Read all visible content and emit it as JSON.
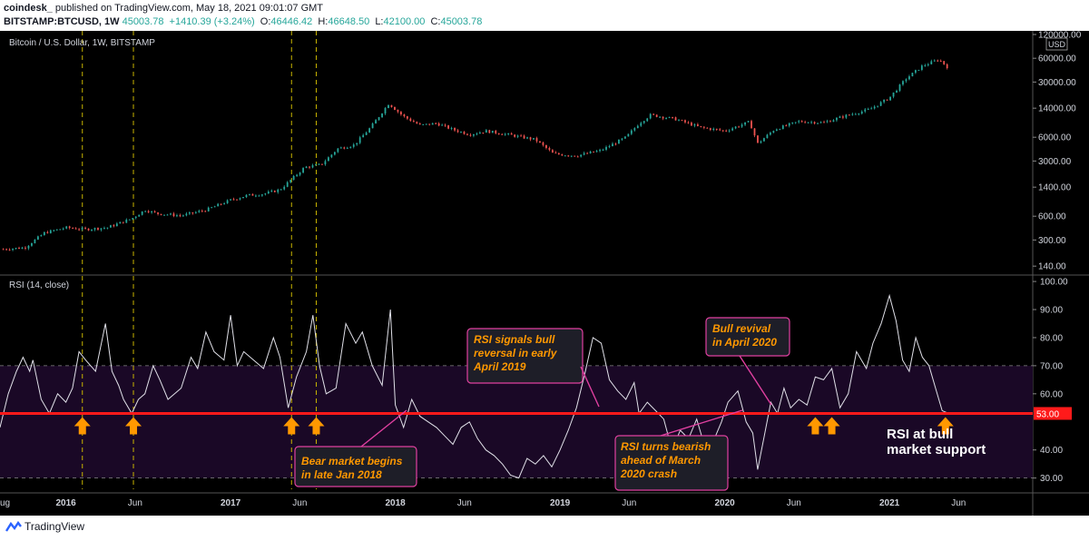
{
  "header": {
    "publisher": "coindesk_",
    "published_text": "published on TradingView.com, May 18, 2021 09:01:07 GMT",
    "symbol": "BITSTAMP:BTCUSD, 1W",
    "last": "45003.78",
    "change": "+1410.39 (+3.24%)",
    "o_label": "O:",
    "o_value": "46446.42",
    "h_label": "H:",
    "h_value": "46648.50",
    "l_label": "L:",
    "l_value": "42100.00",
    "c_label": "C:",
    "c_value": "45003.78"
  },
  "footer": {
    "brand": "TradingView"
  },
  "colors": {
    "background": "#000000",
    "rsi_band": "#1a0826",
    "rsi_line": "#e0e0e8",
    "support_line": "#ff1a1a",
    "arrow": "#ff9800",
    "annotation_text": "#ff9800",
    "annotation_border": "#e040a0",
    "up_candle": "#26a69a",
    "down_candle": "#ef5350",
    "vline": "#c8b400"
  },
  "chart_data": [
    {
      "type": "line",
      "pane": "price",
      "title": "Bitcoin / U.S. Dollar, 1W, BITSTAMP",
      "scale": "log",
      "currency_label": "USD",
      "y_ticks": [
        140,
        300,
        600,
        1400,
        3000,
        6000,
        14000,
        30000,
        60000,
        120000
      ],
      "y_tick_labels": [
        "140.00",
        "300.00",
        "600.00",
        "1400.00",
        "3000.00",
        "6000.00",
        "14000.00",
        "30000.00",
        "60000.00",
        "120000.00"
      ],
      "x_tick_labels": [
        "ug",
        "2016",
        "Jun",
        "2017",
        "Jun",
        "2018",
        "Jun",
        "2019",
        "Jun",
        "2020",
        "Jun",
        "2021",
        "Jun"
      ],
      "x_tick_dates": [
        2015.62,
        2016.0,
        2016.42,
        2017.0,
        2017.42,
        2018.0,
        2018.42,
        2019.0,
        2019.42,
        2020.0,
        2020.42,
        2021.0,
        2021.42
      ],
      "xlim": [
        2015.6,
        2021.87
      ],
      "ylim": [
        120,
        120000
      ],
      "series": [
        {
          "x": [
            2015.62,
            2015.75,
            2015.87,
            2016.0,
            2016.12,
            2016.25,
            2016.4,
            2016.48,
            2016.55,
            2016.7,
            2016.85,
            2017.0,
            2017.1,
            2017.2,
            2017.3,
            2017.45,
            2017.55,
            2017.65,
            2017.75,
            2017.85,
            2017.96,
            2018.05,
            2018.15,
            2018.25,
            2018.35,
            2018.45,
            2018.55,
            2018.7,
            2018.85,
            2018.96,
            2019.1,
            2019.25,
            2019.4,
            2019.48,
            2019.55,
            2019.7,
            2019.85,
            2020.0,
            2020.15,
            2020.2,
            2020.3,
            2020.45,
            2020.6,
            2020.75,
            2020.88,
            2021.0,
            2021.1,
            2021.2,
            2021.3,
            2021.36
          ],
          "y": [
            230,
            240,
            370,
            430,
            410,
            430,
            560,
            720,
            650,
            610,
            720,
            960,
            1100,
            1150,
            1300,
            2500,
            2700,
            4300,
            4800,
            8000,
            16000,
            11000,
            8500,
            9000,
            7500,
            6500,
            7200,
            6400,
            5600,
            3700,
            3500,
            4100,
            6000,
            9000,
            11500,
            10200,
            8000,
            7200,
            9400,
            5000,
            7500,
            9500,
            9200,
            11500,
            13500,
            19000,
            33000,
            48000,
            58000,
            45000
          ]
        }
      ],
      "marked_dates": [
        2016.1,
        2016.41,
        2017.37,
        2017.52
      ]
    },
    {
      "type": "line",
      "pane": "rsi",
      "title": "RSI (14, close)",
      "y_ticks": [
        30,
        40,
        50,
        60,
        70,
        80,
        90,
        100
      ],
      "y_tick_labels": [
        "30.00",
        "40.00",
        "50.00",
        "60.00",
        "70.00",
        "80.00",
        "90.00",
        "100.00"
      ],
      "ylim": [
        26,
        101
      ],
      "band": [
        30,
        70
      ],
      "support_level": 53,
      "support_label": "53.00",
      "series": [
        {
          "x": [
            2015.6,
            2015.65,
            2015.7,
            2015.74,
            2015.78,
            2015.8,
            2015.85,
            2015.9,
            2015.95,
            2016.0,
            2016.04,
            2016.08,
            2016.12,
            2016.18,
            2016.24,
            2016.28,
            2016.32,
            2016.35,
            2016.4,
            2016.44,
            2016.48,
            2016.53,
            2016.57,
            2016.62,
            2016.7,
            2016.76,
            2016.8,
            2016.85,
            2016.9,
            2016.96,
            2017.0,
            2017.04,
            2017.08,
            2017.14,
            2017.2,
            2017.26,
            2017.3,
            2017.35,
            2017.4,
            2017.46,
            2017.5,
            2017.54,
            2017.58,
            2017.64,
            2017.7,
            2017.76,
            2017.8,
            2017.86,
            2017.92,
            2017.97,
            2018.0,
            2018.05,
            2018.1,
            2018.15,
            2018.2,
            2018.25,
            2018.3,
            2018.35,
            2018.4,
            2018.45,
            2018.5,
            2018.55,
            2018.6,
            2018.65,
            2018.7,
            2018.75,
            2018.8,
            2018.85,
            2018.9,
            2018.95,
            2019.0,
            2019.05,
            2019.1,
            2019.15,
            2019.2,
            2019.25,
            2019.3,
            2019.35,
            2019.4,
            2019.45,
            2019.48,
            2019.53,
            2019.58,
            2019.63,
            2019.68,
            2019.73,
            2019.78,
            2019.83,
            2019.88,
            2019.93,
            2019.98,
            2020.02,
            2020.08,
            2020.13,
            2020.17,
            2020.2,
            2020.24,
            2020.28,
            2020.32,
            2020.36,
            2020.4,
            2020.45,
            2020.5,
            2020.55,
            2020.6,
            2020.65,
            2020.7,
            2020.75,
            2020.8,
            2020.86,
            2020.9,
            2020.95,
            2021.0,
            2021.04,
            2021.08,
            2021.12,
            2021.16,
            2021.2,
            2021.24,
            2021.28,
            2021.32,
            2021.36
          ],
          "y": [
            48,
            60,
            68,
            73,
            68,
            72,
            58,
            53,
            60,
            57,
            62,
            75,
            72,
            68,
            85,
            68,
            63,
            58,
            53,
            58,
            60,
            70,
            65,
            58,
            62,
            73,
            69,
            82,
            75,
            72,
            88,
            70,
            75,
            72,
            69,
            80,
            73,
            55,
            66,
            75,
            88,
            70,
            60,
            62,
            85,
            78,
            82,
            70,
            63,
            90,
            56,
            48,
            58,
            52,
            50,
            48,
            45,
            42,
            48,
            50,
            44,
            40,
            38,
            35,
            31,
            30,
            37,
            35,
            38,
            34,
            40,
            47,
            55,
            67,
            80,
            78,
            65,
            61,
            58,
            64,
            53,
            57,
            54,
            51,
            40,
            47,
            44,
            51,
            41,
            43,
            50,
            57,
            61,
            50,
            46,
            33,
            45,
            57,
            53,
            62,
            55,
            58,
            56,
            66,
            65,
            69,
            55,
            60,
            75,
            69,
            78,
            85,
            95,
            86,
            72,
            68,
            80,
            73,
            70,
            62,
            54,
            53
          ]
        }
      ],
      "arrows_at": [
        2016.1,
        2016.41,
        2017.37,
        2017.52,
        2020.55,
        2020.65,
        2021.34
      ]
    }
  ],
  "annotations": [
    {
      "id": "rsi-bull-2019",
      "lines": [
        "RSI signals bull",
        "reversal in early",
        "April 2019"
      ]
    },
    {
      "id": "bull-revival",
      "lines": [
        "Bull revival",
        "in April 2020"
      ]
    },
    {
      "id": "bear-2018",
      "lines": [
        "Bear market begins",
        "in late Jan 2018"
      ]
    },
    {
      "id": "rsi-bearish-2020",
      "lines": [
        "RSI turns bearish",
        "ahead of March",
        "2020 crash"
      ]
    },
    {
      "id": "rsi-support",
      "lines": [
        "RSI at bull",
        "market support"
      ]
    }
  ]
}
